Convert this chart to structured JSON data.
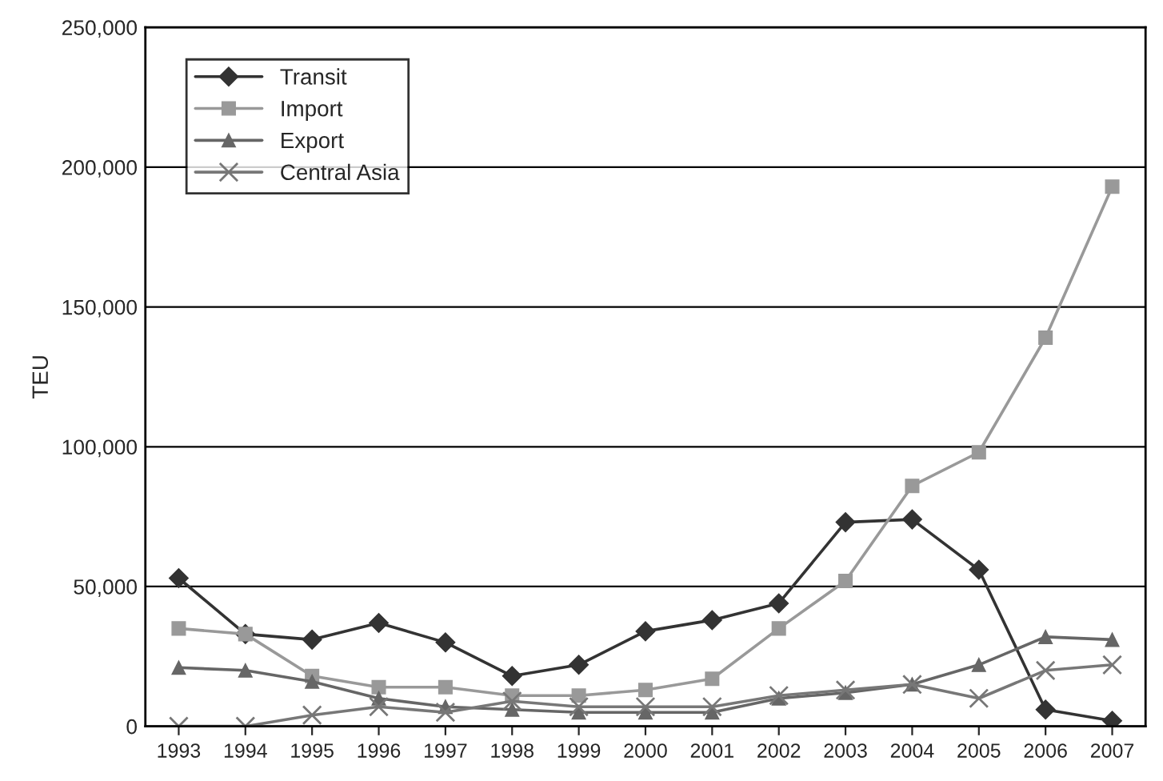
{
  "chart_data": {
    "type": "line",
    "ylabel": "TEU",
    "categories": [
      "1993",
      "1994",
      "1995",
      "1996",
      "1997",
      "1998",
      "1999",
      "2000",
      "2001",
      "2002",
      "2003",
      "2004",
      "2005",
      "2006",
      "2007"
    ],
    "series": [
      {
        "name": "Transit",
        "color": "#333333",
        "marker": "diamond",
        "values": [
          53000,
          33000,
          31000,
          37000,
          30000,
          18000,
          22000,
          34000,
          38000,
          44000,
          73000,
          74000,
          56000,
          6000,
          2000
        ]
      },
      {
        "name": "Import",
        "color": "#999999",
        "marker": "square",
        "values": [
          35000,
          33000,
          18000,
          14000,
          14000,
          11000,
          11000,
          13000,
          17000,
          35000,
          52000,
          86000,
          98000,
          139000,
          193000
        ]
      },
      {
        "name": "Export",
        "color": "#666666",
        "marker": "triangle",
        "values": [
          21000,
          20000,
          16000,
          10000,
          7000,
          6000,
          5000,
          5000,
          5000,
          10000,
          12000,
          15000,
          22000,
          32000,
          31000
        ]
      },
      {
        "name": "Central Asia",
        "color": "#777777",
        "marker": "cross",
        "values": [
          0,
          0,
          4000,
          7000,
          5000,
          9000,
          7000,
          7000,
          7000,
          11000,
          13000,
          15000,
          10000,
          20000,
          22000
        ]
      }
    ],
    "ylim": [
      0,
      250000
    ],
    "yticks": [
      {
        "value": 0,
        "label": "0"
      },
      {
        "value": 50000,
        "label": "50,000"
      },
      {
        "value": 100000,
        "label": "100,000"
      },
      {
        "value": 150000,
        "label": "150,000"
      },
      {
        "value": 200000,
        "label": "200,000"
      },
      {
        "value": 250000,
        "label": "250,000"
      }
    ],
    "grid": "y",
    "legend": "top left"
  }
}
